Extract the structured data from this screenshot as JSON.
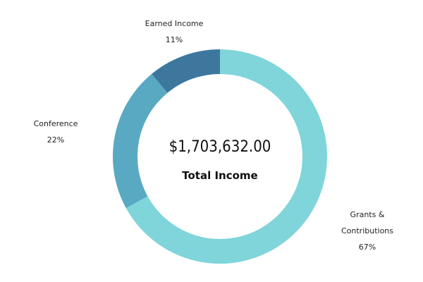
{
  "chart_data": {
    "type": "pie",
    "variant": "donut",
    "center": {
      "amount": "$1,703,632.00",
      "label": "Total Income"
    },
    "slices": [
      {
        "name": "Grants & Contributions",
        "name_lines": [
          "Grants &",
          "Contributions"
        ],
        "percent_label": "67%",
        "value": 67,
        "color": "#7fd5da"
      },
      {
        "name": "Conference",
        "name_lines": [
          "Conference"
        ],
        "percent_label": "22%",
        "value": 22,
        "color": "#5aa9c3"
      },
      {
        "name": "Earned Income",
        "name_lines": [
          "Earned Income"
        ],
        "percent_label": "11%",
        "value": 11,
        "color": "#3e779e"
      }
    ]
  }
}
